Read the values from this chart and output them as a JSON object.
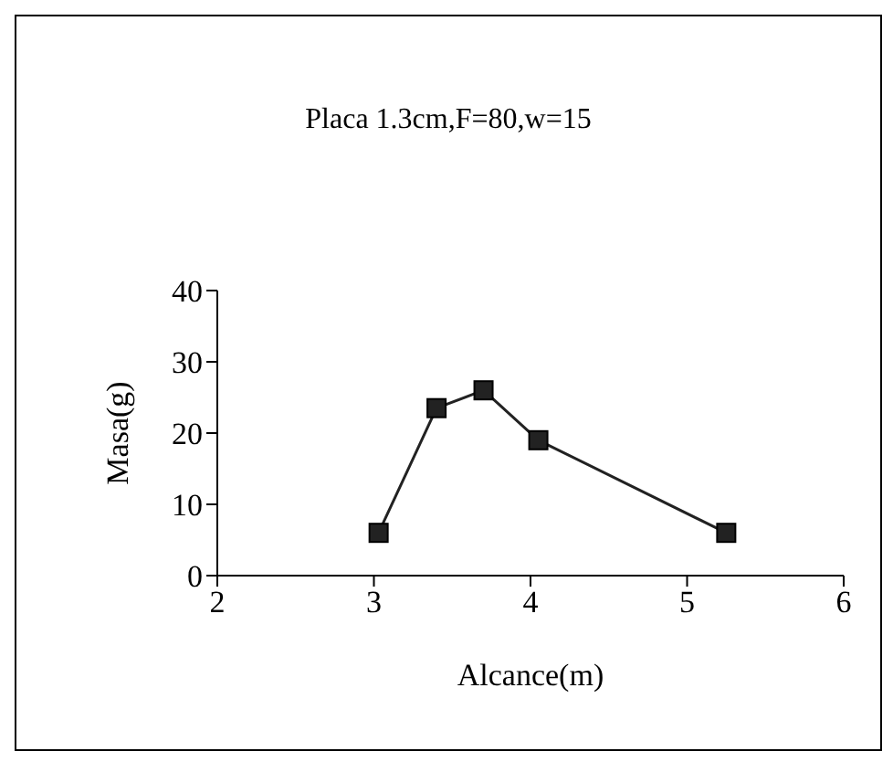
{
  "chart_data": {
    "type": "line",
    "title": "Placa 1.3cm,F=80,w=15",
    "xlabel": "Alcance(m)",
    "ylabel": "Masa(g)",
    "x": [
      3.03,
      3.4,
      3.7,
      4.05,
      5.25
    ],
    "series": [
      {
        "color": "#222222",
        "values": [
          6,
          23.5,
          26,
          19,
          6
        ]
      }
    ],
    "xlim": [
      2,
      6
    ],
    "xticks": [
      2,
      3,
      4,
      5,
      6
    ],
    "ylim": [
      0,
      40
    ],
    "yticks": [
      0,
      10,
      20,
      30,
      40
    ],
    "marker": "square",
    "grid": false,
    "legend": false
  }
}
